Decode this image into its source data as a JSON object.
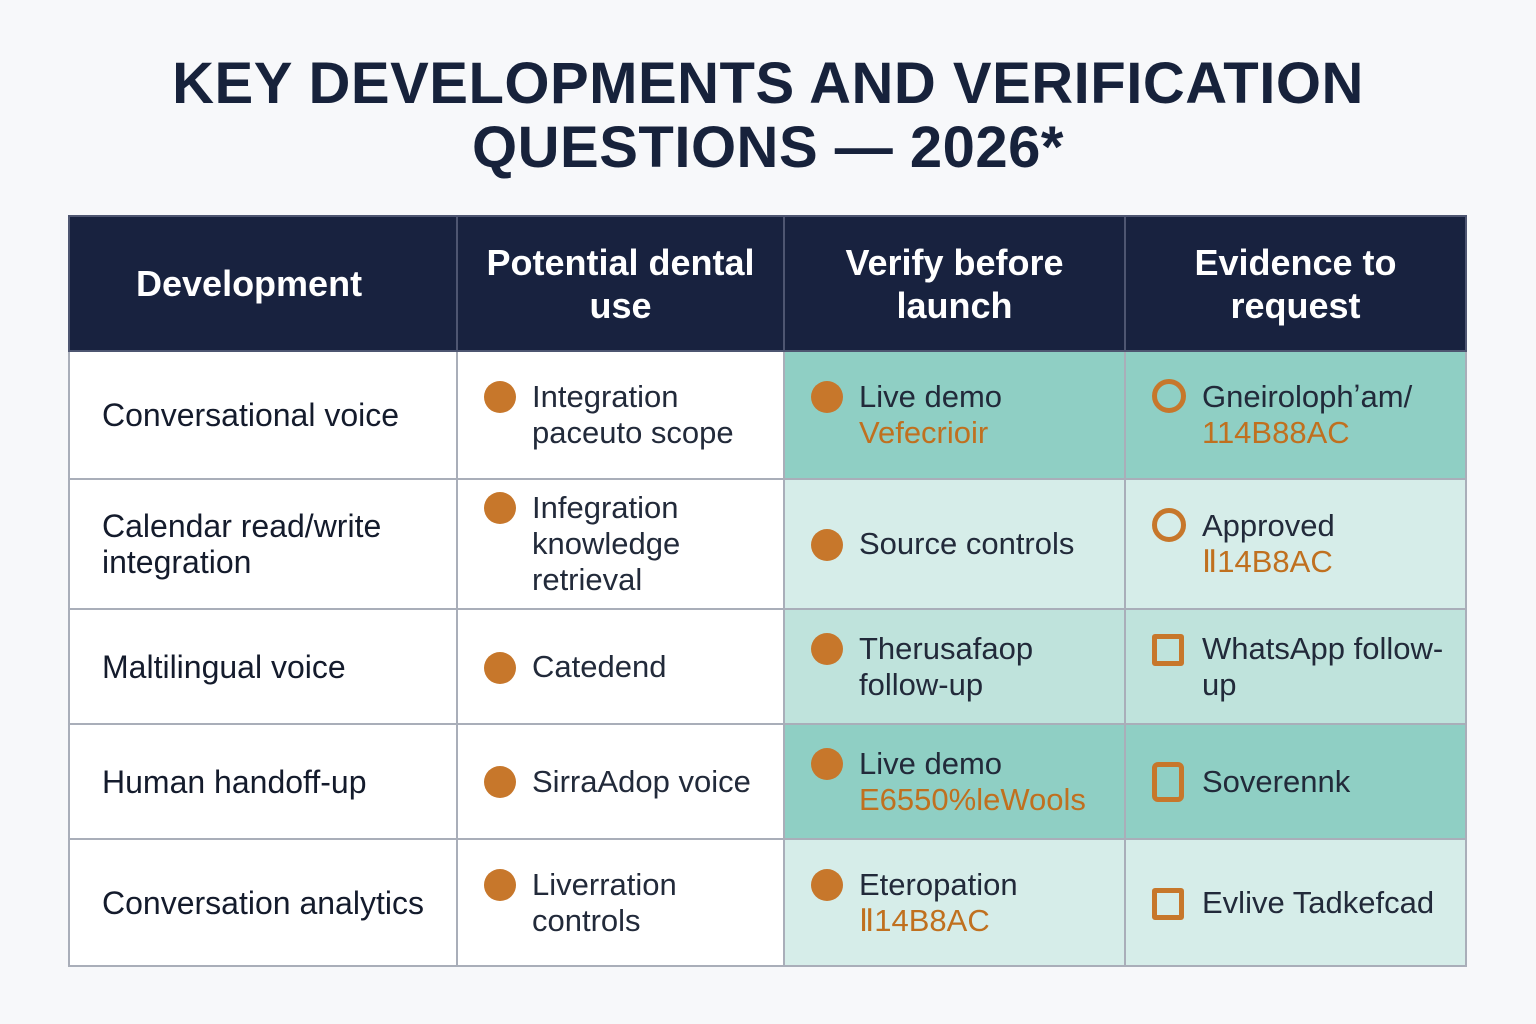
{
  "title": {
    "line1": "KEY DEVELOPMENTS AND VERIFICATION",
    "line2": "QUESTIONS — 2026*"
  },
  "table": {
    "headers": [
      "Development",
      "Potential dental use",
      "Verify before launch",
      "Evidence to request"
    ],
    "rows": [
      {
        "development": "Conversational voice",
        "use": "Integration paceuto scope",
        "verify": {
          "text": "Live demo",
          "accent": "Vefecrioir"
        },
        "evidence": {
          "text": "Gneirolophʼam/",
          "accent": "114B88AC",
          "icon": "ring-icon"
        }
      },
      {
        "development": "Calendar read/write integration",
        "use": "Infegration knowledge retrieval",
        "verify": {
          "text": "Source controls",
          "accent": ""
        },
        "evidence": {
          "text": "Approved",
          "accent": "Ⅱ14B8AC",
          "icon": "ring-icon"
        }
      },
      {
        "development": "Maltilingual voice",
        "use": "Catedend",
        "verify": {
          "text": "Therusafaop follow-up",
          "accent": ""
        },
        "evidence": {
          "text": "WhatsApp follow-up",
          "accent": "",
          "icon": "square-icon"
        }
      },
      {
        "development": "Human handoff-up",
        "use": "SirraAdop voice",
        "verify": {
          "text": "Live demo",
          "accent": "E6550%leWools"
        },
        "evidence": {
          "text": "Soverennk",
          "accent": "",
          "icon": "phone-icon"
        }
      },
      {
        "development": "Conversation analytics",
        "use": "Liverration controls",
        "verify": {
          "text": "Eteropation",
          "accent": "Ⅱ14B8AC"
        },
        "evidence": {
          "text": "Evlive Tadkefcad",
          "accent": "",
          "icon": "square-icon"
        }
      }
    ]
  },
  "colors": {
    "header_bg": "#18223f",
    "accent_orange": "#c7772b",
    "teal_dark": "#8fcfc4",
    "teal_light": "#d6ede9"
  }
}
